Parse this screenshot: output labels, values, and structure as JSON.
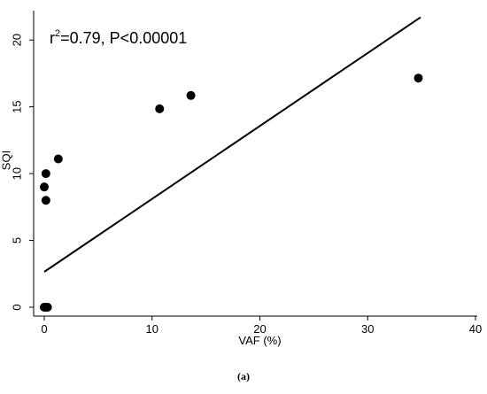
{
  "chart_data": {
    "type": "scatter",
    "title": "",
    "xlabel": "VAF (%)",
    "ylabel": "SQI",
    "xlim": [
      0,
      40
    ],
    "ylim": [
      0,
      22
    ],
    "x_ticks": [
      0,
      10,
      20,
      30,
      40
    ],
    "y_ticks": [
      0,
      5,
      10,
      15,
      20
    ],
    "grid": false,
    "annotation": {
      "base": "r",
      "sup": "2",
      "rest": "=0.79, P<0.00001"
    },
    "points": [
      {
        "x": 0.0,
        "y": 0.0
      },
      {
        "x": 0.15,
        "y": 0.0
      },
      {
        "x": 0.3,
        "y": 0.0
      },
      {
        "x": 0.15,
        "y": 8.0
      },
      {
        "x": 0.0,
        "y": 9.0
      },
      {
        "x": 0.15,
        "y": 10.0
      },
      {
        "x": 1.3,
        "y": 11.1
      },
      {
        "x": 10.7,
        "y": 14.85
      },
      {
        "x": 13.6,
        "y": 15.85
      },
      {
        "x": 34.7,
        "y": 17.15
      }
    ],
    "fit_line": {
      "x": [
        0,
        34.9
      ],
      "y": [
        2.65,
        21.7
      ]
    }
  },
  "caption": "(a)"
}
